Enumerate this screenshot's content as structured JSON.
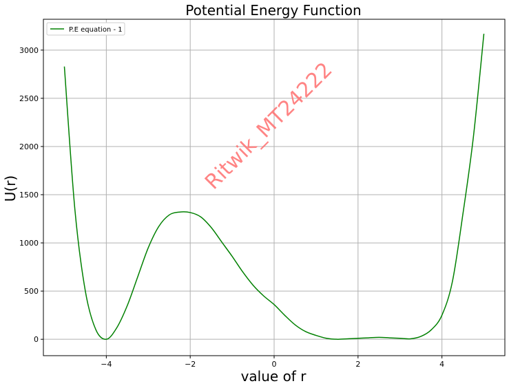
{
  "chart_data": {
    "type": "line",
    "title": "Potential Energy Function",
    "xlabel": "value of r",
    "ylabel": "U(r)",
    "xlim": [
      -5.5,
      5.5
    ],
    "ylim": [
      -170,
      3320
    ],
    "xticks": [
      -4,
      -2,
      0,
      2,
      4
    ],
    "yticks": [
      0,
      500,
      1000,
      1500,
      2000,
      2500,
      3000
    ],
    "grid": true,
    "legend_position": "top-left",
    "watermark": "Ritwik_MT24222",
    "series": [
      {
        "name": "P.E equation - 1",
        "color": "#008000",
        "x": [
          -5.0,
          -4.75,
          -4.5,
          -4.25,
          -4.0,
          -3.75,
          -3.5,
          -3.25,
          -3.0,
          -2.75,
          -2.5,
          -2.25,
          -2.0,
          -1.75,
          -1.5,
          -1.25,
          -1.0,
          -0.75,
          -0.5,
          -0.25,
          0.0,
          0.25,
          0.5,
          0.75,
          1.0,
          1.25,
          1.5,
          1.75,
          2.0,
          2.25,
          2.5,
          2.75,
          3.0,
          3.25,
          3.5,
          3.75,
          4.0,
          4.25,
          4.5,
          4.75,
          5.0
        ],
        "y": [
          2830,
          1350,
          500,
          100,
          0,
          120,
          350,
          650,
          950,
          1170,
          1290,
          1320,
          1315,
          1270,
          1160,
          1010,
          860,
          700,
          560,
          450,
          360,
          250,
          150,
          80,
          40,
          10,
          0,
          5,
          10,
          15,
          20,
          15,
          10,
          5,
          30,
          100,
          250,
          600,
          1300,
          2100,
          3170
        ]
      }
    ]
  }
}
